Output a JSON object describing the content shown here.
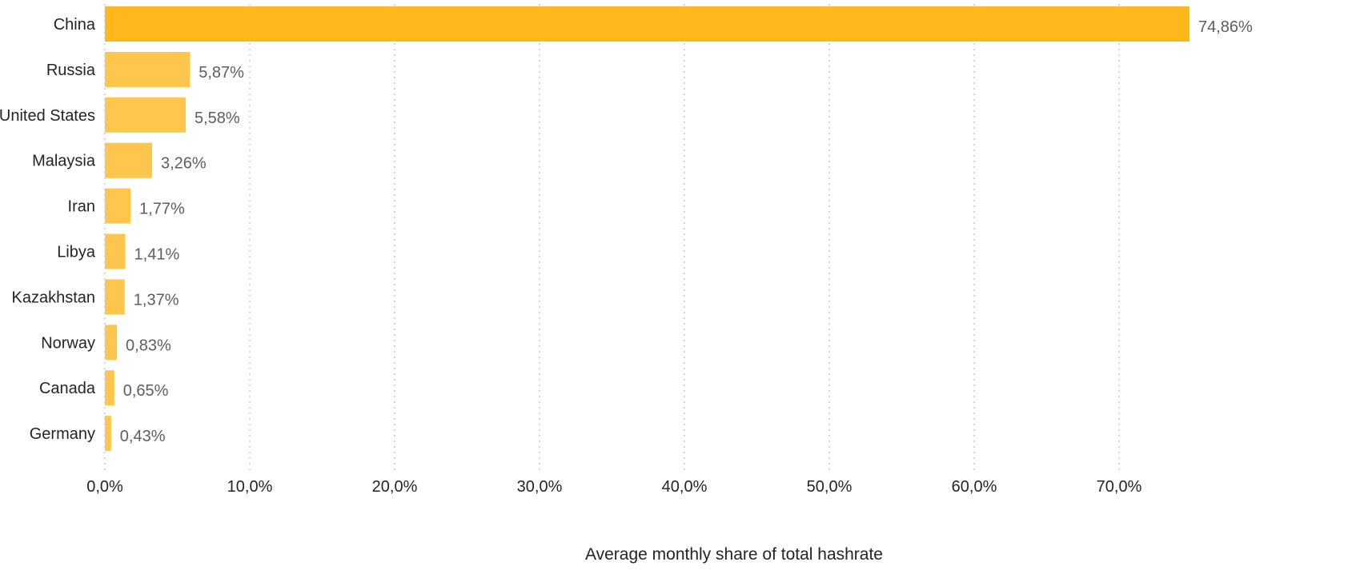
{
  "chart_data": {
    "type": "bar",
    "orientation": "horizontal",
    "categories": [
      "China",
      "Russia",
      "United States",
      "Malaysia",
      "Iran",
      "Libya",
      "Kazakhstan",
      "Norway",
      "Canada",
      "Germany"
    ],
    "values": [
      74.86,
      5.87,
      5.58,
      3.26,
      1.77,
      1.41,
      1.37,
      0.83,
      0.65,
      0.43
    ],
    "value_labels": [
      "74,86%",
      "5,87%",
      "5,58%",
      "3,26%",
      "1,77%",
      "1,41%",
      "1,37%",
      "0,83%",
      "0,65%",
      "0,43%"
    ],
    "xlabel": "Average monthly share of total hashrate",
    "ylabel": "",
    "xlim": [
      0,
      75
    ],
    "x_ticks": [
      0,
      10,
      20,
      30,
      40,
      50,
      60,
      70
    ],
    "x_tick_labels": [
      "0,0%",
      "10,0%",
      "20,0%",
      "30,0%",
      "40,0%",
      "50,0%",
      "60,0%",
      "70,0%"
    ],
    "grid": true,
    "legend": "none",
    "colors": {
      "highlight_bar": "#FFB81C",
      "bar": "#FFC64D"
    }
  }
}
